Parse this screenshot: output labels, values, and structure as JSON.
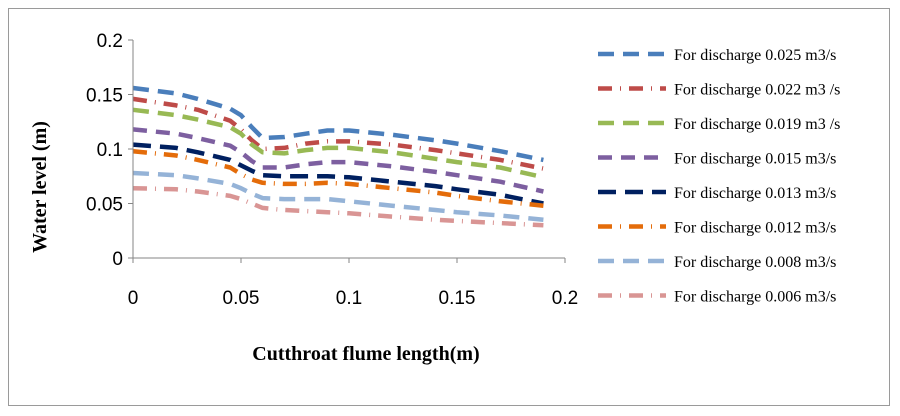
{
  "chart_data": {
    "type": "line",
    "title": "",
    "xlabel": "Cutthroat flume length(m)",
    "ylabel": "Water level (m)",
    "xlim": [
      0,
      0.2
    ],
    "ylim": [
      0,
      0.2
    ],
    "x_ticks": [
      "0",
      "0.05",
      "0.1",
      "0.15",
      "0.2"
    ],
    "y_ticks": [
      "0",
      "0.05",
      "0.1",
      "0.15",
      "0.2"
    ],
    "grid": false,
    "legend_position": "right",
    "x": [
      0,
      0.02,
      0.03,
      0.045,
      0.05,
      0.055,
      0.06,
      0.07,
      0.08,
      0.09,
      0.1,
      0.12,
      0.14,
      0.15,
      0.17,
      0.19
    ],
    "series": [
      {
        "name": "For discharge 0.025 m3/s",
        "color": "#4a7ebb",
        "values": [
          0.156,
          0.151,
          0.146,
          0.137,
          0.131,
          0.12,
          0.11,
          0.111,
          0.114,
          0.117,
          0.117,
          0.113,
          0.108,
          0.105,
          0.098,
          0.09
        ]
      },
      {
        "name": "For discharge 0.022 m3 /s",
        "color": "#be4b48",
        "values": [
          0.146,
          0.14,
          0.136,
          0.126,
          0.118,
          0.108,
          0.1,
          0.101,
          0.105,
          0.107,
          0.107,
          0.104,
          0.099,
          0.096,
          0.09,
          0.082
        ]
      },
      {
        "name": "For discharge 0.019 m3 /s",
        "color": "#98b954",
        "values": [
          0.136,
          0.131,
          0.127,
          0.12,
          0.114,
          0.104,
          0.097,
          0.096,
          0.099,
          0.101,
          0.101,
          0.097,
          0.091,
          0.088,
          0.083,
          0.074
        ]
      },
      {
        "name": "For discharge 0.015 m3/s",
        "color": "#7d5fa0",
        "values": [
          0.118,
          0.114,
          0.11,
          0.103,
          0.097,
          0.089,
          0.083,
          0.083,
          0.086,
          0.088,
          0.088,
          0.084,
          0.079,
          0.076,
          0.07,
          0.061
        ]
      },
      {
        "name": "For discharge 0.013 m3/s",
        "color": "#002060",
        "values": [
          0.104,
          0.101,
          0.097,
          0.09,
          0.085,
          0.08,
          0.076,
          0.075,
          0.075,
          0.075,
          0.074,
          0.07,
          0.066,
          0.063,
          0.058,
          0.05
        ]
      },
      {
        "name": "For discharge 0.012 m3/s",
        "color": "#e46c0a",
        "values": [
          0.098,
          0.094,
          0.09,
          0.083,
          0.077,
          0.072,
          0.069,
          0.068,
          0.068,
          0.069,
          0.068,
          0.064,
          0.06,
          0.057,
          0.052,
          0.048
        ]
      },
      {
        "name": "For discharge 0.008 m3/s",
        "color": "#95b3d7",
        "values": [
          0.078,
          0.076,
          0.073,
          0.068,
          0.064,
          0.059,
          0.055,
          0.054,
          0.054,
          0.054,
          0.052,
          0.048,
          0.044,
          0.042,
          0.039,
          0.035
        ]
      },
      {
        "name": "For discharge 0.006 m3/s",
        "color": "#d99594",
        "values": [
          0.064,
          0.063,
          0.061,
          0.057,
          0.054,
          0.05,
          0.046,
          0.044,
          0.043,
          0.042,
          0.041,
          0.038,
          0.035,
          0.034,
          0.032,
          0.03
        ]
      }
    ]
  }
}
